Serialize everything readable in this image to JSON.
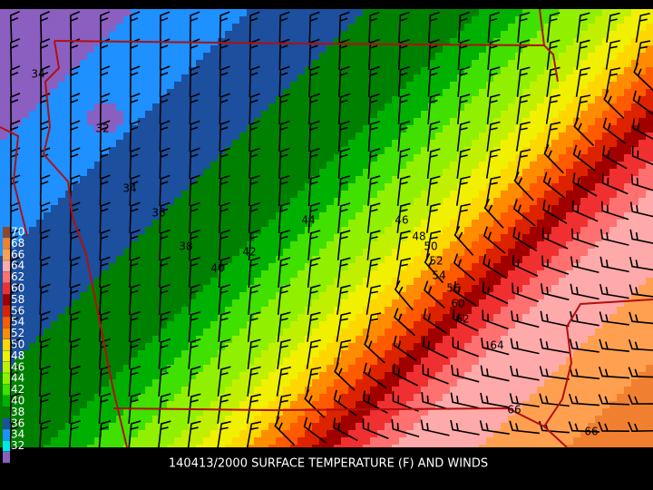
{
  "legend": {
    "values": [
      70,
      68,
      66,
      64,
      62,
      60,
      58,
      56,
      54,
      52,
      50,
      48,
      46,
      44,
      42,
      40,
      38,
      36,
      34,
      32
    ],
    "colors": [
      "#8b4a2b",
      "#f08030",
      "#ffa050",
      "#ffaaaa",
      "#ff7070",
      "#f03030",
      "#a00000",
      "#dd2200",
      "#ff5a00",
      "#ff8c00",
      "#ffd700",
      "#f0f000",
      "#c0f000",
      "#90f000",
      "#40e000",
      "#00b000",
      "#008000",
      "#1c4f9e",
      "#1e90ff",
      "#00e5ee"
    ],
    "below_color": "#8a5fc0",
    "below_value": 32
  },
  "contour_labels": [
    34,
    32,
    34,
    36,
    38,
    40,
    42,
    44,
    46,
    48,
    50,
    52,
    54,
    56,
    60,
    62,
    64,
    66,
    66
  ],
  "title": "140413/2000 SURFACE TEMPERATURE (F) AND WINDS"
}
